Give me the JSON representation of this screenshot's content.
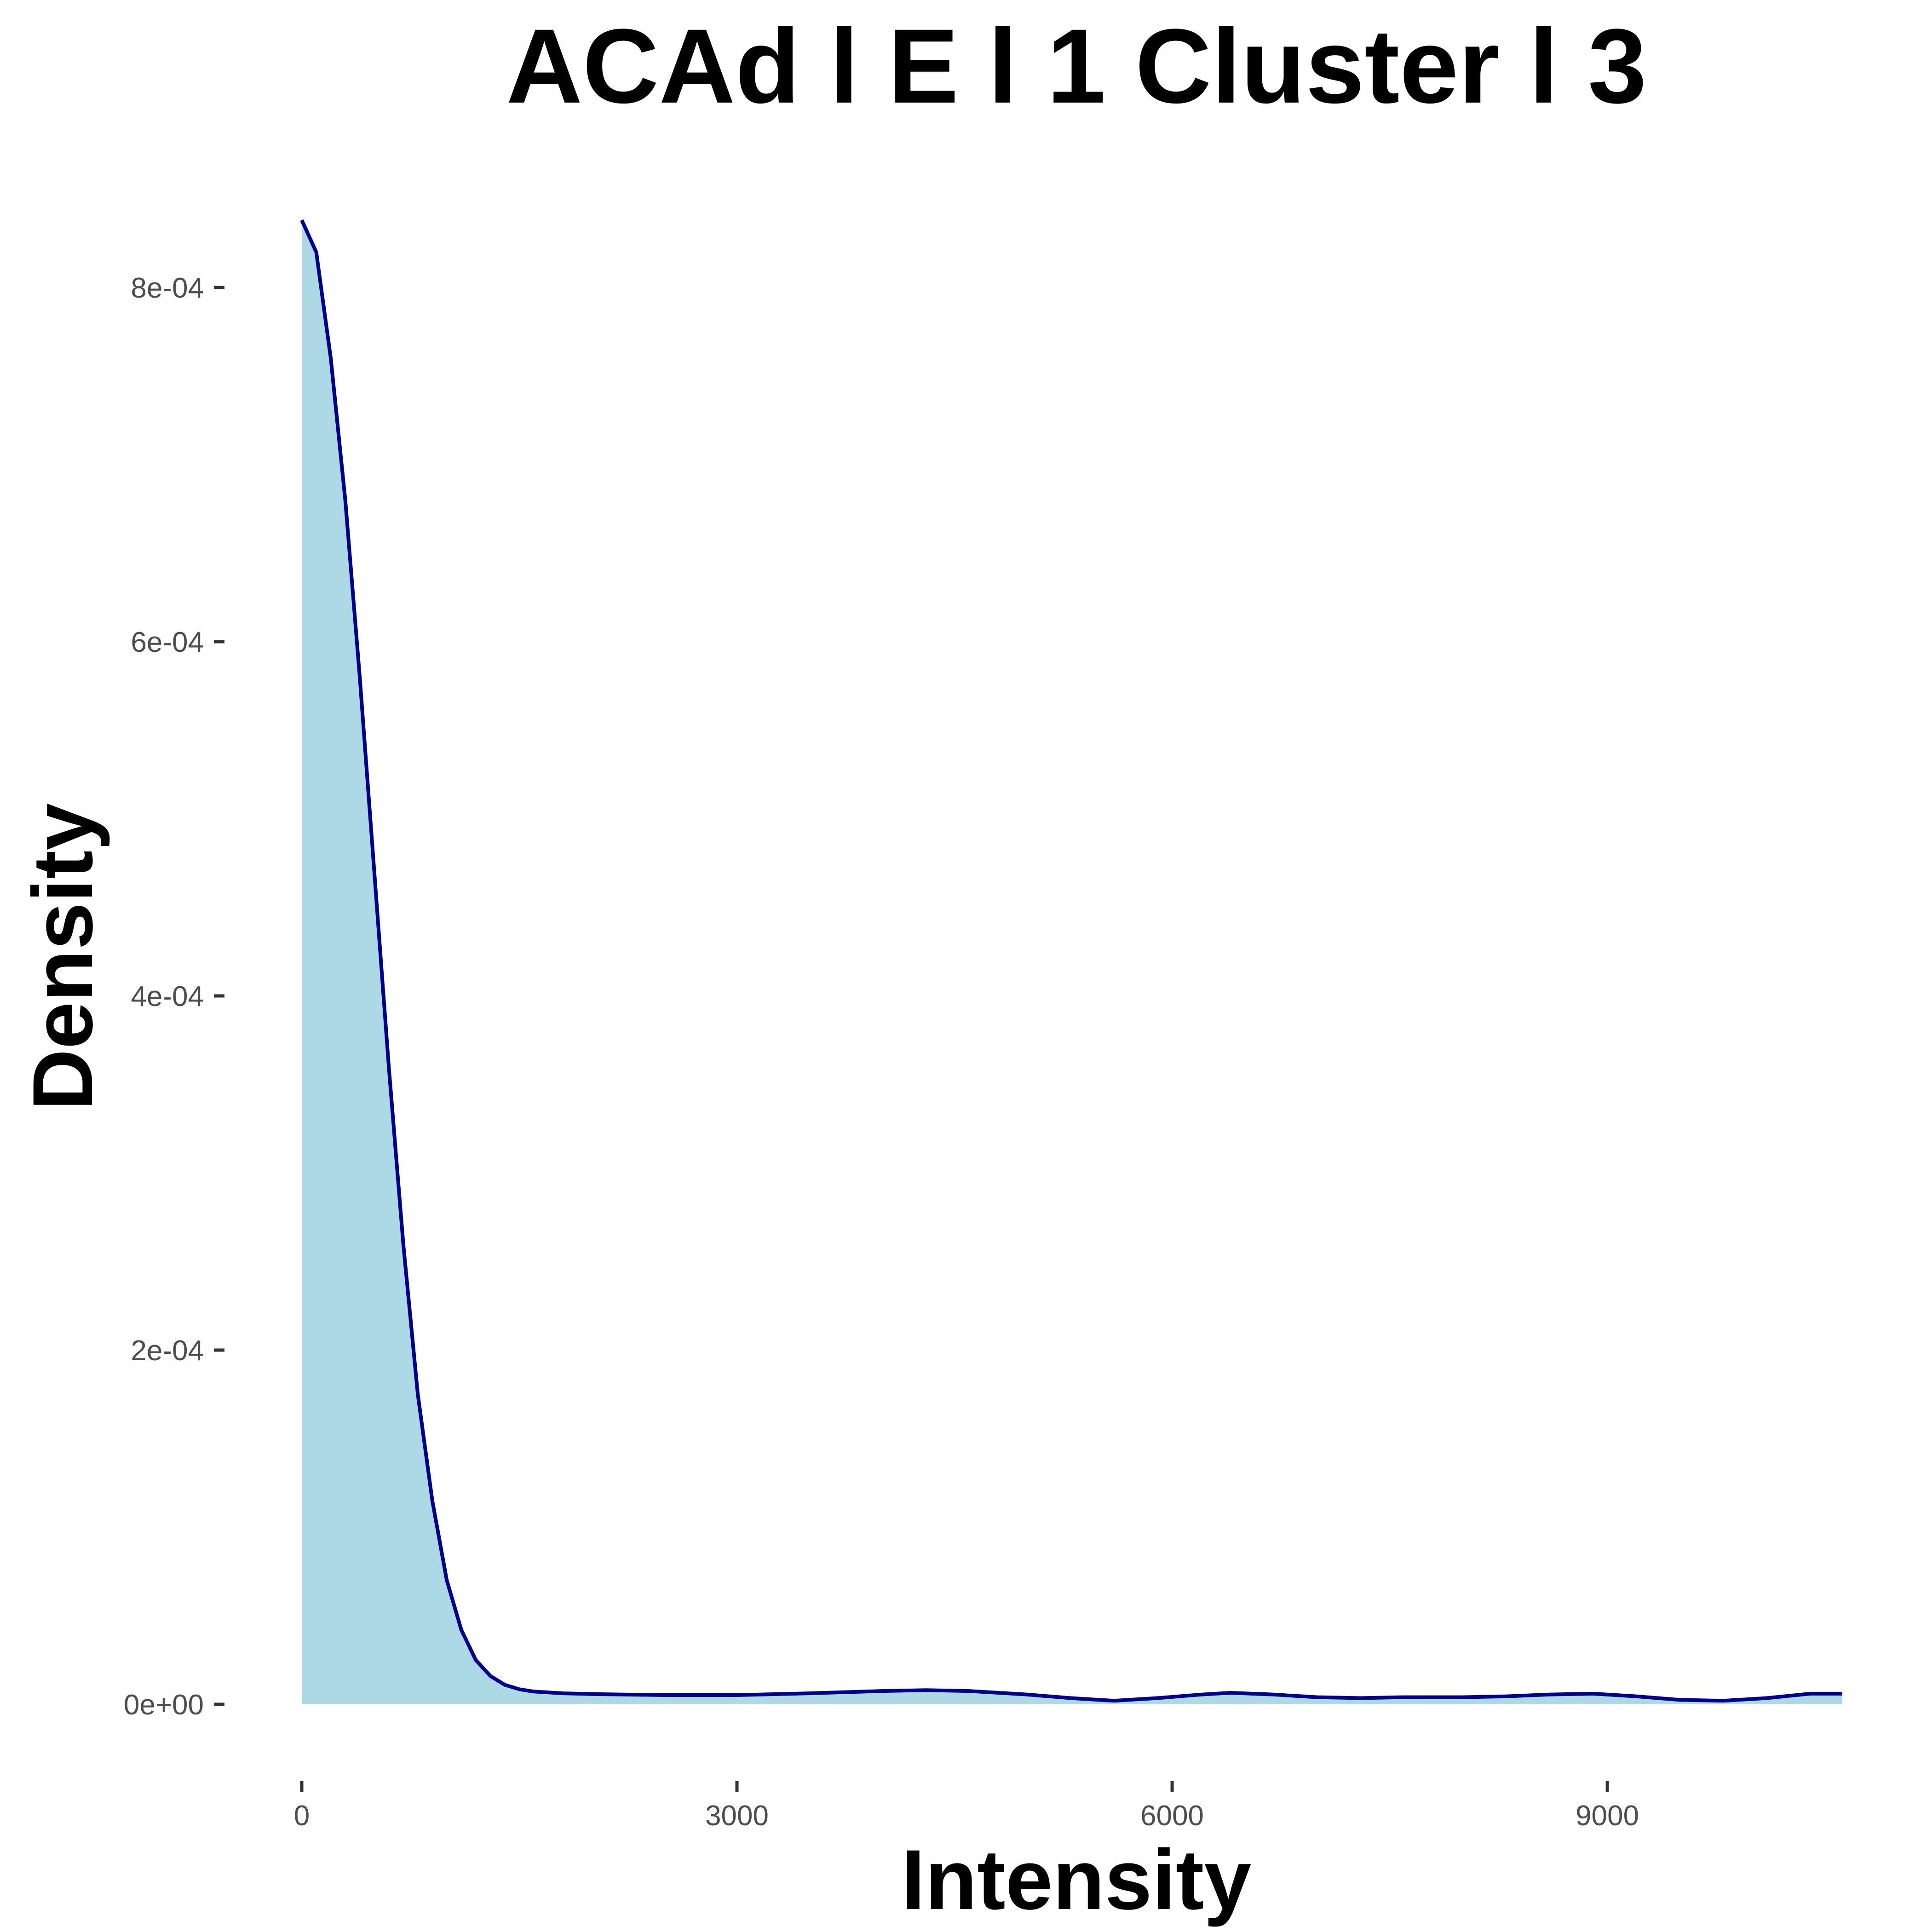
{
  "chart_data": {
    "type": "area",
    "title": "ACAd l E l 1 Cluster l  3",
    "xlabel": "Intensity",
    "ylabel": "Density",
    "xlim": [
      0,
      10620
    ],
    "ylim": [
      0,
      0.00084
    ],
    "x_ticks": [
      {
        "value": 0,
        "label": "0"
      },
      {
        "value": 3000,
        "label": "3000"
      },
      {
        "value": 6000,
        "label": "6000"
      },
      {
        "value": 9000,
        "label": "9000"
      }
    ],
    "y_ticks": [
      {
        "value": 0,
        "label": "0e+00"
      },
      {
        "value": 0.0002,
        "label": "2e-04"
      },
      {
        "value": 0.0004,
        "label": "4e-04"
      },
      {
        "value": 0.0006,
        "label": "6e-04"
      },
      {
        "value": 0.0008,
        "label": "8e-04"
      }
    ],
    "grid": false,
    "legend": "none",
    "fill_color": "#add8e6",
    "line_color": "#00008b",
    "series": [
      {
        "x": [
          0,
          100,
          200,
          300,
          400,
          500,
          600,
          700,
          800,
          900,
          1000,
          1100,
          1200,
          1300,
          1400,
          1500,
          1600,
          1800,
          2000,
          2500,
          3000,
          3500,
          4000,
          4300,
          4600,
          5000,
          5300,
          5600,
          5900,
          6200,
          6400,
          6700,
          7000,
          7300,
          7600,
          8000,
          8300,
          8600,
          8900,
          9200,
          9500,
          9800,
          10100,
          10400,
          10620
        ],
        "y": [
          0.000838,
          0.00082,
          0.00076,
          0.00068,
          0.00058,
          0.00047,
          0.00036,
          0.00026,
          0.000175,
          0.000115,
          7e-05,
          4.2e-05,
          2.5e-05,
          1.6e-05,
          1.1e-05,
          8.5e-06,
          7.2e-06,
          6.2e-06,
          5.8e-06,
          5.2e-06,
          5.2e-06,
          6.2e-06,
          7.5e-06,
          8e-06,
          7.5e-06,
          5.5e-06,
          3.5e-06,
          2e-06,
          3.5e-06,
          5.5e-06,
          6.5e-06,
          5.5e-06,
          4e-06,
          3.5e-06,
          4e-06,
          4e-06,
          4.5e-06,
          5.5e-06,
          6e-06,
          4.5e-06,
          2.5e-06,
          2e-06,
          3.5e-06,
          6e-06,
          6e-06
        ]
      }
    ]
  }
}
